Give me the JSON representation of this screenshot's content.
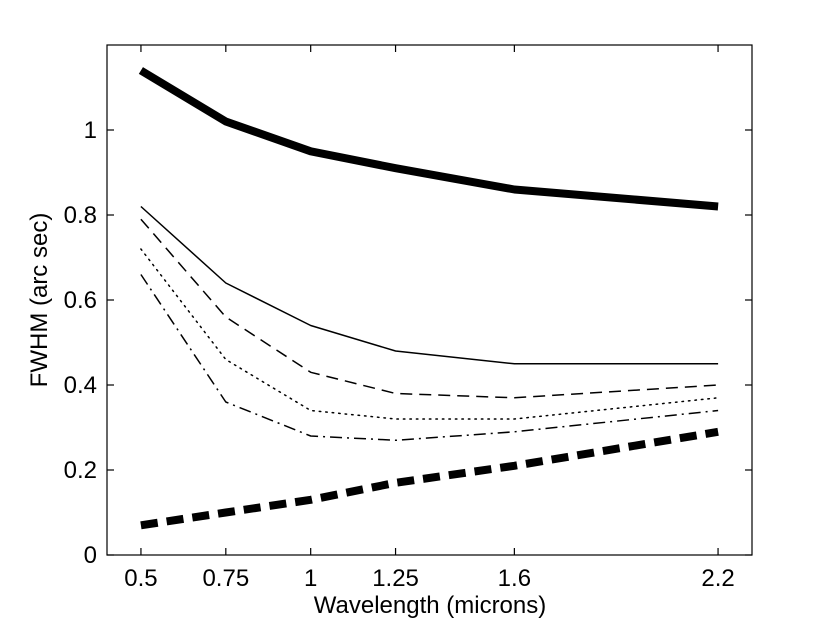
{
  "chart_data": {
    "type": "line",
    "title": "",
    "xlabel": "Wavelength (microns)",
    "ylabel": "FWHM (arc sec)",
    "x": [
      0.5,
      0.75,
      1,
      1.25,
      1.6,
      2.2
    ],
    "x_tick_labels": [
      "0.5",
      "0.75",
      "1",
      "1.25",
      "1.6",
      "2.2"
    ],
    "y_ticks": [
      0,
      0.2,
      0.4,
      0.6,
      0.8,
      1
    ],
    "y_tick_labels": [
      "0",
      "0.2",
      "0.4",
      "0.6",
      "0.8",
      "1"
    ],
    "xlim": [
      0.4,
      2.3
    ],
    "ylim": [
      0,
      1.2
    ],
    "grid": false,
    "legend": "none",
    "series": [
      {
        "name": "thick-solid",
        "style": "solid-thick",
        "color": "#000000",
        "values": [
          1.14,
          1.02,
          0.95,
          0.91,
          0.86,
          0.82
        ]
      },
      {
        "name": "thin-solid",
        "style": "solid",
        "color": "#000000",
        "values": [
          0.82,
          0.64,
          0.54,
          0.48,
          0.45,
          0.45
        ]
      },
      {
        "name": "dashed",
        "style": "dashed",
        "color": "#000000",
        "values": [
          0.79,
          0.56,
          0.43,
          0.38,
          0.37,
          0.4
        ]
      },
      {
        "name": "dotted",
        "style": "dotted",
        "color": "#000000",
        "values": [
          0.72,
          0.46,
          0.34,
          0.32,
          0.32,
          0.37
        ]
      },
      {
        "name": "dash-dot",
        "style": "dashdot",
        "color": "#000000",
        "values": [
          0.66,
          0.36,
          0.28,
          0.27,
          0.29,
          0.34
        ]
      },
      {
        "name": "thick-dashed",
        "style": "dashed-thick",
        "color": "#000000",
        "values": [
          0.07,
          0.1,
          0.13,
          0.17,
          0.21,
          0.29
        ]
      }
    ]
  }
}
